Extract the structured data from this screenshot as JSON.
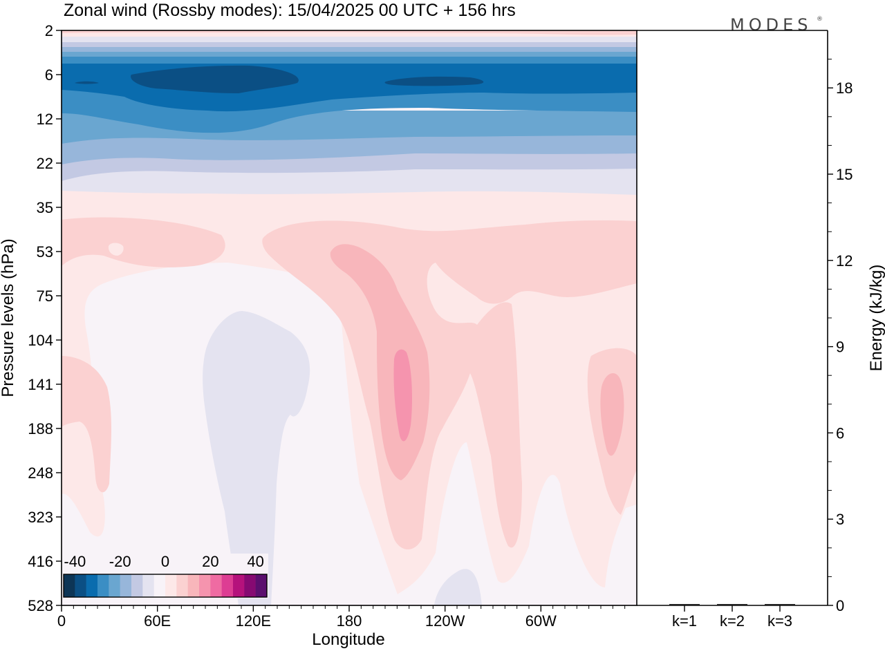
{
  "chart_data": {
    "type": "heatmap",
    "title": "Zonal wind (Rossby modes):  15/04/2025  00 UTC  + 156 hrs",
    "logo": "MODES",
    "logo_mark": "®",
    "xlabel": "Longitude",
    "ylabel": "Pressure levels (hPa)",
    "x_ticks": [
      "0",
      "60E",
      "120E",
      "180",
      "120W",
      "60W"
    ],
    "y_ticks": [
      "2",
      "6",
      "12",
      "22",
      "35",
      "53",
      "75",
      "104",
      "141",
      "188",
      "248",
      "323",
      "416",
      "528"
    ],
    "colorbar": {
      "labels": [
        "-40",
        "-20",
        "0",
        "20",
        "40"
      ],
      "levels": [
        -40,
        -35,
        -30,
        -25,
        -20,
        -15,
        -10,
        -5,
        0,
        5,
        10,
        15,
        20,
        25,
        30,
        35,
        40
      ],
      "colors": [
        "#0d3556",
        "#0b4f84",
        "#0a6cae",
        "#3b8ec4",
        "#6aa6d0",
        "#97b6da",
        "#c3c9e3",
        "#e4e3f0",
        "#f8f3f8",
        "#fde8e8",
        "#fbd1d1",
        "#f8b6bb",
        "#f594ae",
        "#ef6ba2",
        "#dd3d93",
        "#b5127c",
        "#860a72",
        "#5b0f6e"
      ]
    },
    "energy_panel": {
      "ylabel": "Energy (kJ/kg)",
      "yticks": [
        "0",
        "3",
        "6",
        "9",
        "12",
        "15",
        "18"
      ],
      "ylim": [
        0,
        20
      ],
      "categories": [
        "k=1",
        "k=2",
        "k=3"
      ],
      "values": [
        0.02,
        0.01,
        0.01
      ]
    }
  }
}
